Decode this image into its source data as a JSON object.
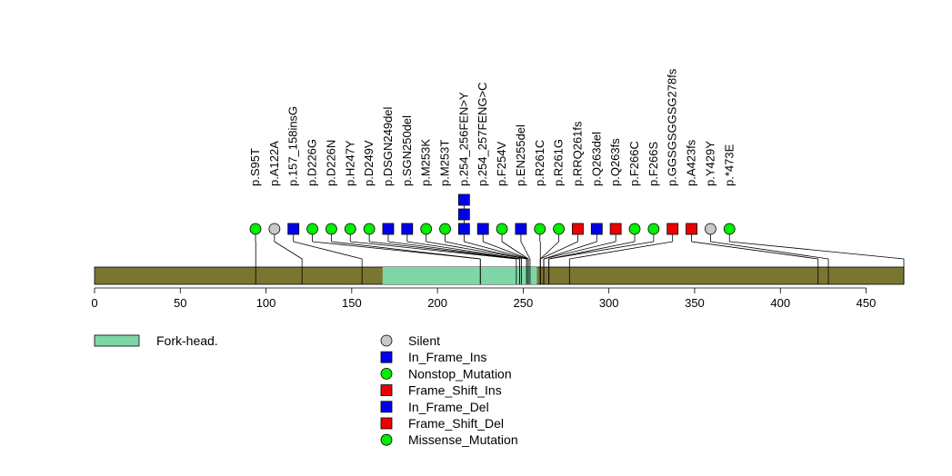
{
  "chart_data": {
    "type": "lollipop",
    "protein_length": 472,
    "axis": {
      "xlim": [
        0,
        472
      ],
      "ticks": [
        0,
        50,
        100,
        150,
        200,
        250,
        300,
        350,
        400,
        450
      ],
      "tick_labels": [
        "0",
        "50",
        "100",
        "150",
        "200",
        "250",
        "300",
        "350",
        "400",
        "450"
      ]
    },
    "colors": {
      "backbone": "#7a7632",
      "domain": "#7ed6a7",
      "silent": "#c8c8c8",
      "in_frame": "#0000ee",
      "missense": "#00ee00",
      "frame_shift": "#ee0000"
    },
    "domains": [
      {
        "name": "Fork-head.",
        "start": 168,
        "end": 258
      }
    ],
    "mutations": [
      {
        "label": "p.S95T",
        "position": 94,
        "type": "Missense_Mutation",
        "count": 1
      },
      {
        "label": "p.A122A",
        "position": 121,
        "type": "Silent",
        "count": 1
      },
      {
        "label": "p.157_158insG",
        "position": 156,
        "type": "In_Frame_Ins",
        "count": 1
      },
      {
        "label": "p.D226G",
        "position": 225,
        "type": "Missense_Mutation",
        "count": 1
      },
      {
        "label": "p.D226N",
        "position": 225,
        "type": "Missense_Mutation",
        "count": 1
      },
      {
        "label": "p.H247Y",
        "position": 246,
        "type": "Missense_Mutation",
        "count": 1
      },
      {
        "label": "p.D249V",
        "position": 248,
        "type": "Missense_Mutation",
        "count": 1
      },
      {
        "label": "p.DSGN249del",
        "position": 248,
        "type": "In_Frame_Del",
        "count": 1
      },
      {
        "label": "p.SGN250del",
        "position": 249,
        "type": "In_Frame_Del",
        "count": 1
      },
      {
        "label": "p.M253K",
        "position": 252,
        "type": "Missense_Mutation",
        "count": 1
      },
      {
        "label": "p.M253T",
        "position": 252,
        "type": "Missense_Mutation",
        "count": 1
      },
      {
        "label": "p.254_256FEN>Y",
        "position": 253,
        "type": "In_Frame_Del",
        "count": 3
      },
      {
        "label": "p.254_257FENG>C",
        "position": 253,
        "type": "In_Frame_Del",
        "count": 1
      },
      {
        "label": "p.F254V",
        "position": 253,
        "type": "Missense_Mutation",
        "count": 1
      },
      {
        "label": "p.EN255del",
        "position": 254,
        "type": "In_Frame_Del",
        "count": 1
      },
      {
        "label": "p.R261C",
        "position": 260,
        "type": "Missense_Mutation",
        "count": 1
      },
      {
        "label": "p.R261G",
        "position": 260,
        "type": "Missense_Mutation",
        "count": 1
      },
      {
        "label": "p.RRQ261fs",
        "position": 260,
        "type": "Frame_Shift_Del",
        "count": 1
      },
      {
        "label": "p.Q263del",
        "position": 262,
        "type": "In_Frame_Del",
        "count": 1
      },
      {
        "label": "p.Q263fs",
        "position": 262,
        "type": "Frame_Shift_Del",
        "count": 1
      },
      {
        "label": "p.F266C",
        "position": 265,
        "type": "Missense_Mutation",
        "count": 1
      },
      {
        "label": "p.F266S",
        "position": 265,
        "type": "Missense_Mutation",
        "count": 1
      },
      {
        "label": "p.GGSGSGGSG278fs",
        "position": 277,
        "type": "Frame_Shift_Ins",
        "count": 1
      },
      {
        "label": "p.A423fs",
        "position": 422,
        "type": "Frame_Shift_Del",
        "count": 1
      },
      {
        "label": "p.Y429Y",
        "position": 428,
        "type": "Silent",
        "count": 1
      },
      {
        "label": "p.*473E",
        "position": 472,
        "type": "Missense_Mutation",
        "count": 1
      }
    ],
    "domain_legend": [
      {
        "label": "Fork-head.",
        "color": "#7ed6a7"
      }
    ],
    "type_legend": [
      {
        "label": "Silent",
        "shape": "circle",
        "color": "#c8c8c8"
      },
      {
        "label": "In_Frame_Ins",
        "shape": "square",
        "color": "#0000ee"
      },
      {
        "label": "Nonstop_Mutation",
        "shape": "circle",
        "color": "#00ee00"
      },
      {
        "label": "Frame_Shift_Ins",
        "shape": "square",
        "color": "#ee0000"
      },
      {
        "label": "In_Frame_Del",
        "shape": "square",
        "color": "#0000ee"
      },
      {
        "label": "Frame_Shift_Del",
        "shape": "square",
        "color": "#ee0000"
      },
      {
        "label": "Missense_Mutation",
        "shape": "circle",
        "color": "#00ee00"
      }
    ]
  }
}
